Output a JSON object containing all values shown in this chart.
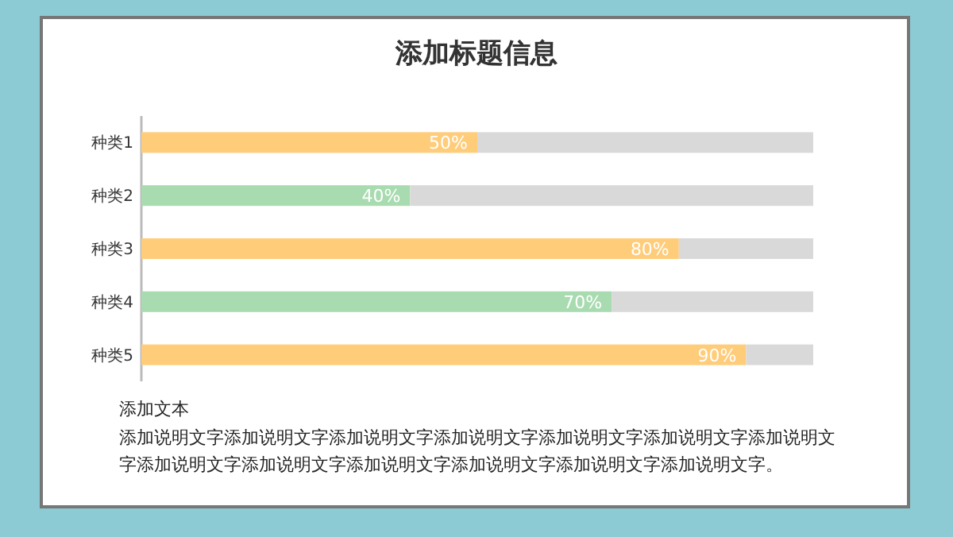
{
  "chart_data": {
    "type": "bar",
    "orientation": "horizontal",
    "stacked": true,
    "title": "添加标题信息",
    "categories": [
      "种类1",
      "种类2",
      "种类3",
      "种类4",
      "种类5"
    ],
    "series": [
      {
        "colors": [
          "#ffcc7a",
          "#a8dbb0",
          "#ffcc7a",
          "#a8dbb0",
          "#ffcc7a"
        ],
        "values": [
          50,
          40,
          80,
          70,
          90
        ],
        "value_labels": [
          "50%",
          "40%",
          "80%",
          "70%",
          "90%"
        ]
      },
      {
        "color": "#d9d9d9",
        "values": [
          50,
          60,
          20,
          30,
          10
        ]
      }
    ],
    "xlim": [
      0,
      100
    ],
    "tick_labels": "y",
    "annotations": [
      "添加文本",
      "添加说明文字添加说明文字添加说明文字添加说明文字添加说明文字添加说明文字添加说明文字添加说明文字添加说明文字添加说明文字添加说明文字添加说明文字添加说明文字。"
    ]
  }
}
